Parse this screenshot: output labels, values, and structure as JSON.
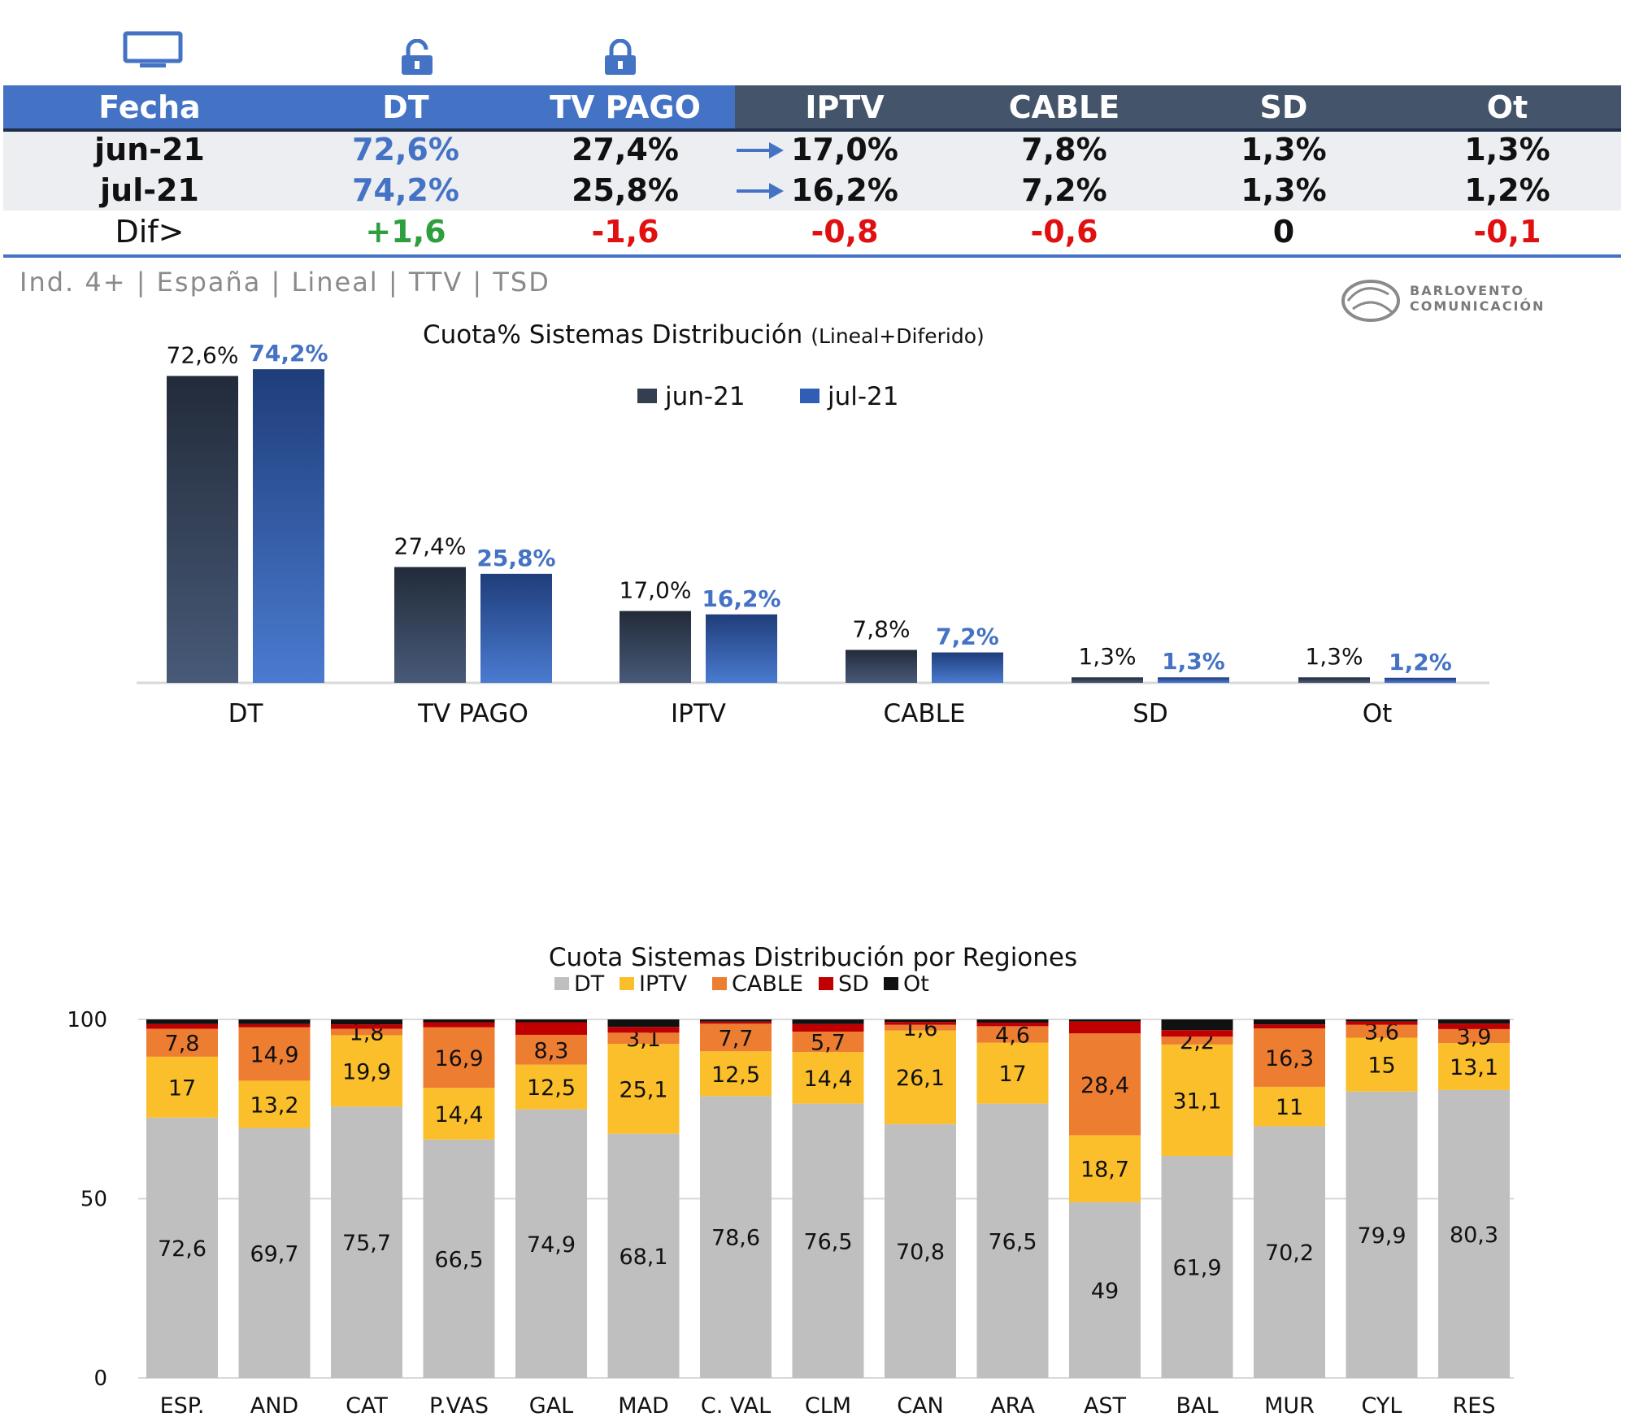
{
  "summary_table": {
    "headers": [
      "Fecha",
      "DT",
      "TV PAGO",
      "IPTV",
      "CABLE",
      "SD",
      "Ot"
    ],
    "rows": [
      {
        "fecha": "jun-21",
        "dt": "72,6%",
        "tvpago": "27,4%",
        "iptv": "17,0%",
        "cable": "7,8%",
        "sd": "1,3%",
        "ot": "1,3%"
      },
      {
        "fecha": "jul-21",
        "dt": "74,2%",
        "tvpago": "25,8%",
        "iptv": "16,2%",
        "cable": "7,2%",
        "sd": "1,3%",
        "ot": "1,2%"
      }
    ],
    "dif": {
      "label": "Dif>",
      "dt": "+1,6",
      "tvpago": "-1,6",
      "iptv": "-0,8",
      "cable": "-0,6",
      "sd": "0",
      "ot": "-0,1"
    },
    "icons": [
      "tv-icon",
      "unlock-icon",
      "lock-icon",
      "arrow-right-icon"
    ]
  },
  "subtitle": "Ind. 4+ | España | Lineal | TTV | TSD",
  "logo": {
    "line1": "BARLOVENTO",
    "line2": "COMUNICACIÓN"
  },
  "colors": {
    "header_blue": "#4472c4",
    "header_dark": "#44546a",
    "jun": "#333f50",
    "jul": "#4472c4",
    "dt": "#bfbfbf",
    "iptv": "#fbbf2c",
    "cable": "#ed7d31",
    "sd": "#c00000",
    "ot": "#111111"
  },
  "chart_data": [
    {
      "type": "bar",
      "title": "Cuota% Sistemas Distribución",
      "title_suffix": "(Lineal+Diferido)",
      "categories": [
        "DT",
        "TV PAGO",
        "IPTV",
        "CABLE",
        "SD",
        "Ot"
      ],
      "series": [
        {
          "name": "jun-21",
          "values": [
            72.6,
            27.4,
            17.0,
            7.8,
            1.3,
            1.3
          ],
          "labels": [
            "72,6%",
            "27,4%",
            "17,0%",
            "7,8%",
            "1,3%",
            "1,3%"
          ]
        },
        {
          "name": "jul-21",
          "values": [
            74.2,
            25.8,
            16.2,
            7.2,
            1.3,
            1.2
          ],
          "labels": [
            "74,2%",
            "25,8%",
            "16,2%",
            "7,2%",
            "1,3%",
            "1,2%"
          ]
        }
      ],
      "legend": "top-center",
      "ylim": [
        0,
        75
      ]
    },
    {
      "type": "bar",
      "stacked": true,
      "title": "Cuota Sistemas Distribución por  Regiones",
      "categories": [
        "ESP.",
        "AND",
        "CAT",
        "P.VAS",
        "GAL",
        "MAD",
        "C. VAL",
        "CLM",
        "CAN",
        "ARA",
        "AST",
        "BAL",
        "MUR",
        "CYL",
        "RES"
      ],
      "series": [
        {
          "name": "DT",
          "values": [
            72.6,
            69.7,
            75.7,
            66.5,
            74.9,
            68.1,
            78.6,
            76.5,
            70.8,
            76.5,
            49,
            61.9,
            70.2,
            79.9,
            80.3
          ],
          "labels": [
            "72,6",
            "69,7",
            "75,7",
            "66,5",
            "74,9",
            "68,1",
            "78,6",
            "76,5",
            "70,8",
            "76,5",
            "49",
            "61,9",
            "70,2",
            "79,9",
            "80,3"
          ]
        },
        {
          "name": "IPTV",
          "values": [
            17,
            13.2,
            19.9,
            14.4,
            12.5,
            25.1,
            12.5,
            14.4,
            26.1,
            17,
            18.7,
            31.1,
            11,
            15,
            13.1
          ],
          "labels": [
            "17",
            "13,2",
            "19,9",
            "14,4",
            "12,5",
            "25,1",
            "12,5",
            "14,4",
            "26,1",
            "17",
            "18,7",
            "31,1",
            "11",
            "15",
            "13,1"
          ]
        },
        {
          "name": "CABLE",
          "values": [
            7.8,
            14.9,
            1.8,
            16.9,
            8.3,
            3.1,
            7.7,
            5.7,
            1.6,
            4.6,
            28.4,
            2.2,
            16.3,
            3.6,
            3.9
          ],
          "labels": [
            "7,8",
            "14,9",
            "1,8",
            "16,9",
            "8,3",
            "3,1",
            "7,7",
            "5,7",
            "1,6",
            "4,6",
            "28,4",
            "2,2",
            "16,3",
            "3,6",
            "3,9"
          ]
        },
        {
          "name": "SD",
          "values": [
            1.3,
            0.9,
            1.2,
            1.4,
            3.5,
            1.6,
            0.6,
            2.1,
            0.8,
            1.0,
            3.3,
            1.8,
            1.1,
            0.9,
            1.5
          ]
        },
        {
          "name": "Ot",
          "values": [
            1.3,
            1.3,
            1.4,
            0.8,
            0.8,
            2.1,
            0.6,
            1.3,
            0.7,
            0.9,
            0.6,
            3.0,
            1.4,
            0.6,
            1.2
          ]
        }
      ],
      "yticks": [
        "0",
        "50",
        "100"
      ],
      "ylim": [
        0,
        100
      ],
      "legend": "top-center"
    }
  ]
}
